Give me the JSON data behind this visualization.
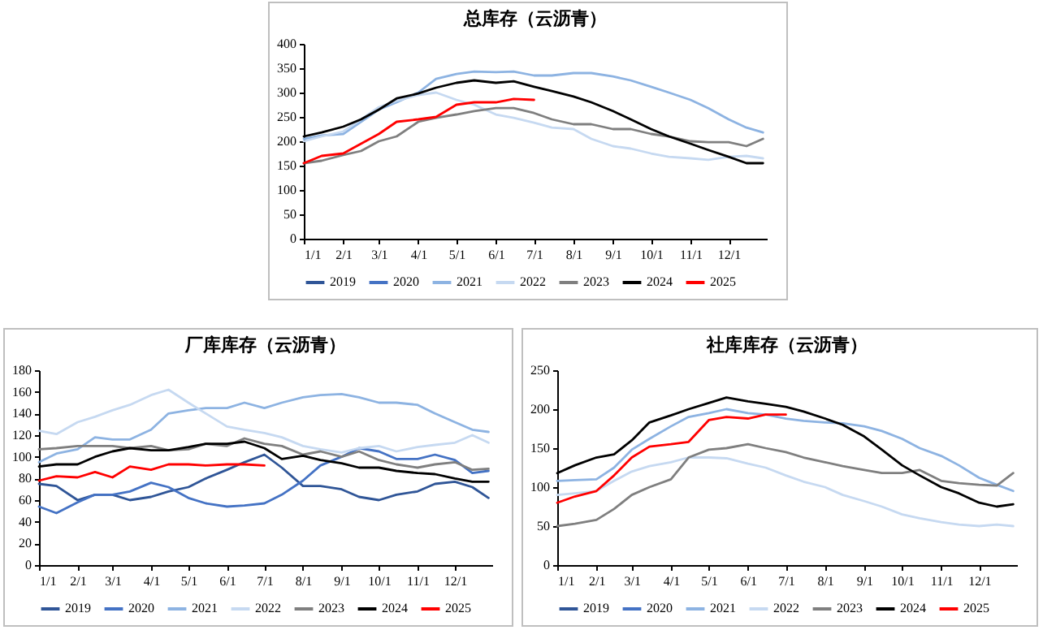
{
  "chart_data": [
    {
      "type": "line",
      "title": "总库存（云沥青）",
      "legend": "bottom",
      "x": [
        "--01-01",
        "--01-15",
        "--02-01",
        "--02-15",
        "--03-01",
        "--03-15",
        "--04-01",
        "--04-15",
        "--05-01",
        "--05-15",
        "--06-01",
        "--06-15",
        "--07-01",
        "--07-15",
        "--08-01",
        "--08-15",
        "--09-01",
        "--09-15",
        "--10-01",
        "--10-15",
        "--11-01",
        "--11-15",
        "--12-01",
        "--12-15",
        "--12-28"
      ],
      "xlim": [
        "--01-01",
        "--12-31"
      ],
      "xticks": [
        {
          "value": "--01-01",
          "label": "1/1"
        },
        {
          "value": "--02-01",
          "label": "2/1"
        },
        {
          "value": "--03-01",
          "label": "3/1"
        },
        {
          "value": "--04-01",
          "label": "4/1"
        },
        {
          "value": "--05-01",
          "label": "5/1"
        },
        {
          "value": "--06-01",
          "label": "6/1"
        },
        {
          "value": "--07-01",
          "label": "7/1"
        },
        {
          "value": "--08-01",
          "label": "8/1"
        },
        {
          "value": "--09-01",
          "label": "9/1"
        },
        {
          "value": "--10-01",
          "label": "10/1"
        },
        {
          "value": "--11-01",
          "label": "11/1"
        },
        {
          "value": "--12-01",
          "label": "12/1"
        }
      ],
      "ylim": [
        0,
        400
      ],
      "yticks": [
        0,
        50,
        100,
        150,
        200,
        250,
        300,
        350,
        400
      ],
      "series": [
        {
          "name": "2019",
          "color": "#2f5597",
          "values": [
            null,
            null,
            null,
            null,
            null,
            null,
            null,
            null,
            null,
            null,
            null,
            null,
            null,
            null,
            null,
            null,
            null,
            null,
            null,
            null,
            null,
            null,
            null,
            null,
            null
          ]
        },
        {
          "name": "2020",
          "color": "#4472c4",
          "values": [
            null,
            null,
            null,
            null,
            null,
            null,
            null,
            null,
            null,
            null,
            null,
            null,
            null,
            null,
            null,
            null,
            null,
            null,
            null,
            null,
            null,
            null,
            null,
            null,
            null
          ]
        },
        {
          "name": "2021",
          "color": "#8db3e2",
          "values": [
            205,
            212,
            215,
            240,
            265,
            280,
            300,
            328,
            338,
            343,
            342,
            343,
            335,
            335,
            340,
            340,
            333,
            325,
            312,
            300,
            285,
            268,
            245,
            228,
            218
          ]
        },
        {
          "name": "2022",
          "color": "#c6d9f1",
          "values": [
            200,
            210,
            220,
            245,
            270,
            283,
            295,
            300,
            285,
            275,
            255,
            248,
            238,
            228,
            225,
            205,
            190,
            185,
            175,
            168,
            165,
            162,
            168,
            170,
            165
          ]
        },
        {
          "name": "2023",
          "color": "#7f7f7f",
          "values": [
            155,
            160,
            172,
            180,
            200,
            210,
            240,
            248,
            255,
            262,
            268,
            268,
            258,
            245,
            235,
            235,
            225,
            225,
            215,
            210,
            200,
            198,
            198,
            190,
            205
          ]
        },
        {
          "name": "2024",
          "color": "#000000",
          "values": [
            210,
            218,
            230,
            245,
            265,
            288,
            298,
            310,
            320,
            325,
            320,
            323,
            312,
            303,
            292,
            280,
            262,
            245,
            225,
            210,
            195,
            182,
            168,
            155,
            155
          ]
        },
        {
          "name": "2025",
          "color": "#ff0000",
          "values": [
            155,
            170,
            175,
            195,
            215,
            240,
            245,
            250,
            275,
            280,
            280,
            287,
            285,
            null,
            null,
            null,
            null,
            null,
            null,
            null,
            null,
            null,
            null,
            null,
            null
          ]
        }
      ]
    },
    {
      "type": "line",
      "title": "厂库库存（云沥青）",
      "legend": "bottom",
      "x": [
        "--01-01",
        "--01-15",
        "--02-01",
        "--02-15",
        "--03-01",
        "--03-15",
        "--04-01",
        "--04-15",
        "--05-01",
        "--05-15",
        "--06-01",
        "--06-15",
        "--07-01",
        "--07-15",
        "--08-01",
        "--08-15",
        "--09-01",
        "--09-15",
        "--10-01",
        "--10-15",
        "--11-01",
        "--11-15",
        "--12-01",
        "--12-15",
        "--12-28"
      ],
      "xlim": [
        "--01-01",
        "--12-31"
      ],
      "xticks": [
        {
          "value": "--01-01",
          "label": "1/1"
        },
        {
          "value": "--02-01",
          "label": "2/1"
        },
        {
          "value": "--03-01",
          "label": "3/1"
        },
        {
          "value": "--04-01",
          "label": "4/1"
        },
        {
          "value": "--05-01",
          "label": "5/1"
        },
        {
          "value": "--06-01",
          "label": "6/1"
        },
        {
          "value": "--07-01",
          "label": "7/1"
        },
        {
          "value": "--08-01",
          "label": "8/1"
        },
        {
          "value": "--09-01",
          "label": "9/1"
        },
        {
          "value": "--10-01",
          "label": "10/1"
        },
        {
          "value": "--11-01",
          "label": "11/1"
        },
        {
          "value": "--12-01",
          "label": "12/1"
        }
      ],
      "ylim": [
        0,
        180
      ],
      "yticks": [
        0,
        20,
        40,
        60,
        80,
        100,
        120,
        140,
        160,
        180
      ],
      "series": [
        {
          "name": "2019",
          "color": "#2f5597",
          "values": [
            75,
            73,
            60,
            65,
            65,
            60,
            63,
            68,
            72,
            80,
            88,
            95,
            102,
            90,
            73,
            73,
            70,
            63,
            60,
            65,
            68,
            75,
            77,
            72,
            62
          ]
        },
        {
          "name": "2020",
          "color": "#4472c4",
          "values": [
            54,
            48,
            58,
            65,
            65,
            68,
            76,
            72,
            62,
            57,
            54,
            55,
            57,
            65,
            78,
            92,
            100,
            108,
            105,
            98,
            98,
            102,
            97,
            85,
            87
          ]
        },
        {
          "name": "2021",
          "color": "#8db3e2",
          "values": [
            95,
            103,
            107,
            118,
            116,
            116,
            125,
            140,
            143,
            145,
            145,
            150,
            145,
            150,
            155,
            157,
            158,
            155,
            150,
            150,
            148,
            140,
            132,
            125,
            123
          ]
        },
        {
          "name": "2022",
          "color": "#c6d9f1",
          "values": [
            124,
            121,
            132,
            137,
            143,
            148,
            157,
            162,
            150,
            140,
            128,
            125,
            122,
            118,
            110,
            107,
            104,
            108,
            110,
            105,
            109,
            111,
            113,
            120,
            113
          ]
        },
        {
          "name": "2023",
          "color": "#7f7f7f",
          "values": [
            107,
            108,
            110,
            110,
            110,
            108,
            110,
            106,
            107,
            112,
            110,
            117,
            112,
            110,
            102,
            105,
            100,
            105,
            97,
            93,
            90,
            93,
            95,
            88,
            89
          ]
        },
        {
          "name": "2024",
          "color": "#000000",
          "values": [
            91,
            93,
            93,
            100,
            105,
            108,
            106,
            106,
            109,
            112,
            112,
            114,
            108,
            98,
            101,
            97,
            94,
            90,
            90,
            87,
            85,
            84,
            80,
            77,
            77
          ]
        },
        {
          "name": "2025",
          "color": "#ff0000",
          "values": [
            78,
            82,
            81,
            86,
            81,
            91,
            88,
            93,
            93,
            92,
            93,
            93,
            92,
            null,
            null,
            null,
            null,
            null,
            null,
            null,
            null,
            null,
            null,
            null,
            null
          ]
        }
      ]
    },
    {
      "type": "line",
      "title": "社库库存（云沥青）",
      "legend": "bottom",
      "x": [
        "--01-01",
        "--01-15",
        "--02-01",
        "--02-15",
        "--03-01",
        "--03-15",
        "--04-01",
        "--04-15",
        "--05-01",
        "--05-15",
        "--06-01",
        "--06-15",
        "--07-01",
        "--07-15",
        "--08-01",
        "--08-15",
        "--09-01",
        "--09-15",
        "--10-01",
        "--10-15",
        "--11-01",
        "--11-15",
        "--12-01",
        "--12-15",
        "--12-28"
      ],
      "xlim": [
        "--01-01",
        "--12-31"
      ],
      "xticks": [
        {
          "value": "--01-01",
          "label": "1/1"
        },
        {
          "value": "--02-01",
          "label": "2/1"
        },
        {
          "value": "--03-01",
          "label": "3/1"
        },
        {
          "value": "--04-01",
          "label": "4/1"
        },
        {
          "value": "--05-01",
          "label": "5/1"
        },
        {
          "value": "--06-01",
          "label": "6/1"
        },
        {
          "value": "--07-01",
          "label": "7/1"
        },
        {
          "value": "--08-01",
          "label": "8/1"
        },
        {
          "value": "--09-01",
          "label": "9/1"
        },
        {
          "value": "--10-01",
          "label": "10/1"
        },
        {
          "value": "--11-01",
          "label": "11/1"
        },
        {
          "value": "--12-01",
          "label": "12/1"
        }
      ],
      "ylim": [
        0,
        250
      ],
      "yticks": [
        0,
        50,
        100,
        150,
        200,
        250
      ],
      "series": [
        {
          "name": "2019",
          "color": "#2f5597",
          "values": [
            null,
            null,
            null,
            null,
            null,
            null,
            null,
            null,
            null,
            null,
            null,
            null,
            null,
            null,
            null,
            null,
            null,
            null,
            null,
            null,
            null,
            null,
            null,
            null,
            null
          ]
        },
        {
          "name": "2020",
          "color": "#4472c4",
          "values": [
            null,
            null,
            null,
            null,
            null,
            null,
            null,
            null,
            null,
            null,
            null,
            null,
            null,
            null,
            null,
            null,
            null,
            null,
            null,
            null,
            null,
            null,
            null,
            null,
            null
          ]
        },
        {
          "name": "2021",
          "color": "#8db3e2",
          "values": [
            108,
            109,
            110,
            125,
            148,
            162,
            178,
            190,
            195,
            200,
            195,
            193,
            188,
            185,
            183,
            182,
            178,
            172,
            162,
            150,
            140,
            128,
            112,
            103,
            95
          ]
        },
        {
          "name": "2022",
          "color": "#c6d9f1",
          "values": [
            90,
            92,
            95,
            108,
            120,
            127,
            132,
            138,
            138,
            137,
            130,
            125,
            115,
            107,
            100,
            90,
            82,
            75,
            65,
            60,
            55,
            52,
            50,
            52,
            50
          ]
        },
        {
          "name": "2023",
          "color": "#7f7f7f",
          "values": [
            50,
            53,
            58,
            72,
            90,
            100,
            110,
            138,
            148,
            150,
            155,
            150,
            145,
            138,
            132,
            127,
            122,
            118,
            118,
            122,
            108,
            105,
            103,
            102,
            118
          ]
        },
        {
          "name": "2024",
          "color": "#000000",
          "values": [
            118,
            128,
            138,
            142,
            160,
            183,
            192,
            200,
            208,
            215,
            210,
            207,
            203,
            197,
            188,
            180,
            165,
            148,
            128,
            115,
            100,
            92,
            80,
            75,
            78
          ]
        },
        {
          "name": "2025",
          "color": "#ff0000",
          "values": [
            80,
            88,
            95,
            115,
            138,
            152,
            155,
            158,
            186,
            190,
            188,
            193,
            193,
            null,
            null,
            null,
            null,
            null,
            null,
            null,
            null,
            null,
            null,
            null,
            null
          ]
        }
      ]
    }
  ]
}
